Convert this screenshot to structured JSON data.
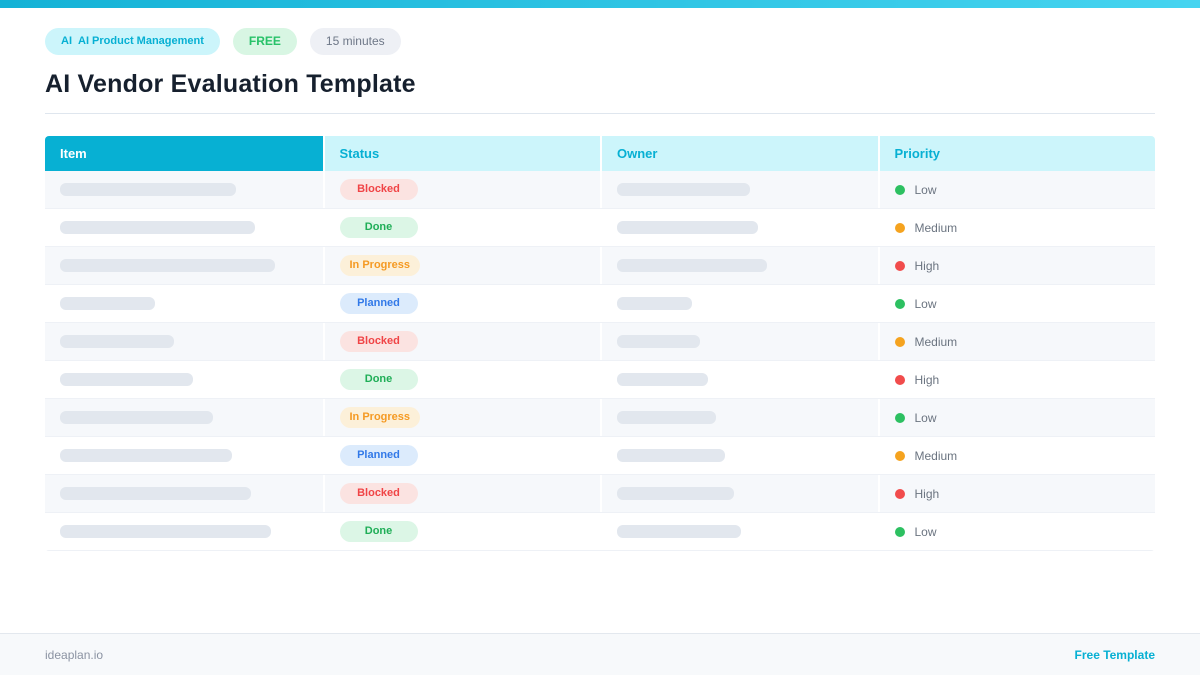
{
  "badges": {
    "category_icon": "AI",
    "category_label": "AI Product Management",
    "plan_label": "FREE",
    "duration_label": "15 minutes"
  },
  "title": "AI Vendor Evaluation Template",
  "table": {
    "columns": [
      "Item",
      "Status",
      "Owner",
      "Priority"
    ],
    "rows": [
      {
        "item_bar_width": 176,
        "status": "Blocked",
        "owner_bar_width": 133,
        "priority": "Low"
      },
      {
        "item_bar_width": 195,
        "status": "Done",
        "owner_bar_width": 141,
        "priority": "Medium"
      },
      {
        "item_bar_width": 215,
        "status": "In Progress",
        "owner_bar_width": 150,
        "priority": "High"
      },
      {
        "item_bar_width": 95,
        "status": "Planned",
        "owner_bar_width": 75,
        "priority": "Low"
      },
      {
        "item_bar_width": 114,
        "status": "Blocked",
        "owner_bar_width": 83,
        "priority": "Medium"
      },
      {
        "item_bar_width": 133,
        "status": "Done",
        "owner_bar_width": 91,
        "priority": "High"
      },
      {
        "item_bar_width": 153,
        "status": "In Progress",
        "owner_bar_width": 99,
        "priority": "Low"
      },
      {
        "item_bar_width": 172,
        "status": "Planned",
        "owner_bar_width": 108,
        "priority": "Medium"
      },
      {
        "item_bar_width": 191,
        "status": "Blocked",
        "owner_bar_width": 117,
        "priority": "High"
      },
      {
        "item_bar_width": 211,
        "status": "Done",
        "owner_bar_width": 124,
        "priority": "Low"
      }
    ]
  },
  "statuses": {
    "Blocked": {
      "color": "#f04446",
      "bg": "#fbe3e1"
    },
    "Done": {
      "color": "#1fae57",
      "bg": "#dcf6e6"
    },
    "In Progress": {
      "color": "#f59a23",
      "bg": "#fcf0d9"
    },
    "Planned": {
      "color": "#3279e8",
      "bg": "#dcebfc"
    }
  },
  "priorities": {
    "Low": "#2dc061",
    "Medium": "#f5a31f",
    "High": "#f14c4c"
  },
  "colors": {
    "accent": "#07b0d3",
    "accent_light": "#ccf5fb",
    "topbar_from": "#14b2d6",
    "topbar_to": "#46d4f0",
    "row_stripe": "#f6f8fb",
    "placeholder": "#e2e7ee"
  },
  "footer": {
    "brand": "ideaplan.io",
    "link": "Free Template"
  }
}
